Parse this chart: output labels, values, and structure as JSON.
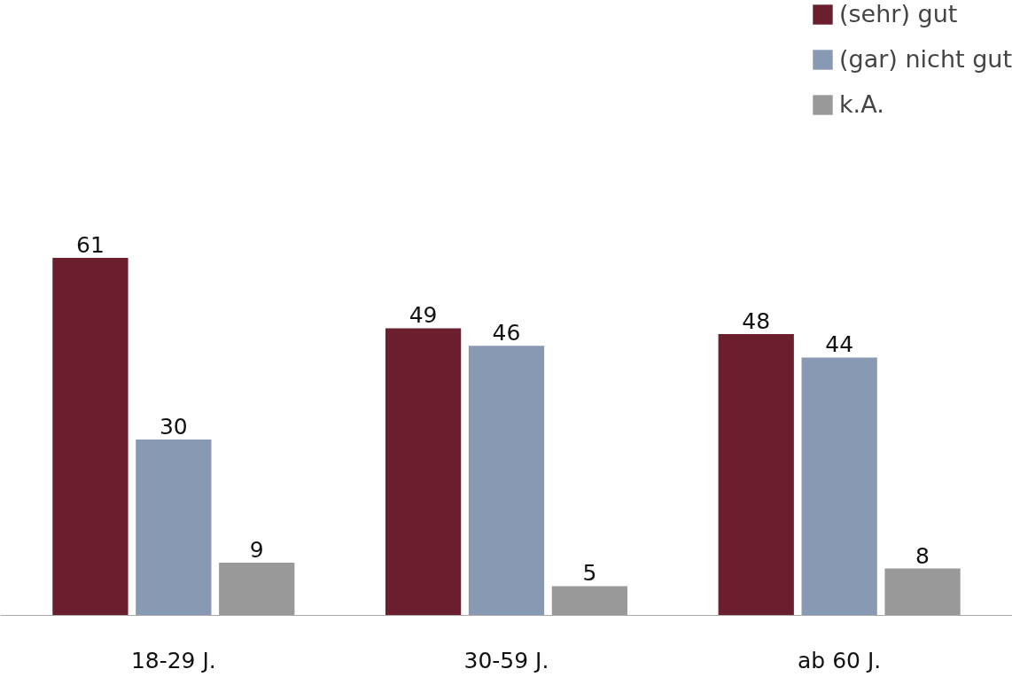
{
  "chart_data": {
    "type": "bar",
    "categories": [
      "18-29 J.",
      "30-59 J.",
      "ab 60 J."
    ],
    "series": [
      {
        "name": "(sehr) gut",
        "color": "#6b1f2e",
        "values": [
          61,
          49,
          48
        ]
      },
      {
        "name": "(gar) nicht gut",
        "color": "#8899b3",
        "values": [
          30,
          46,
          44
        ]
      },
      {
        "name": "k.A.",
        "color": "#999999",
        "values": [
          9,
          5,
          8
        ]
      }
    ],
    "data_labels": true,
    "legend": "top right",
    "grid": false
  }
}
